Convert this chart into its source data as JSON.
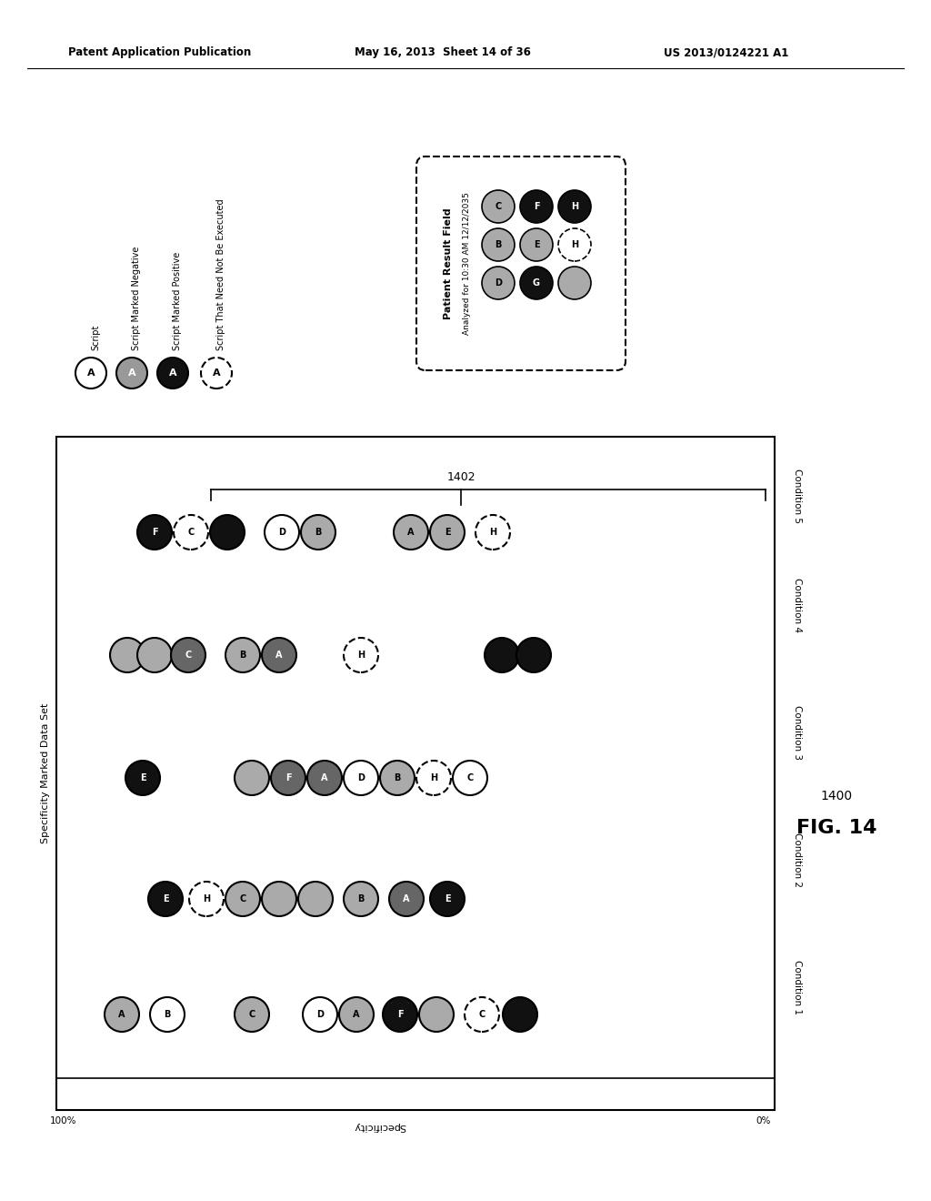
{
  "header_left": "Patent Application Publication",
  "header_mid": "May 16, 2013  Sheet 14 of 36",
  "header_right": "US 2013/0124221 A1",
  "legend_labels": [
    "Script",
    "Script Marked Negative",
    "Script Marked Positive",
    "Script That Need Not Be Executed"
  ],
  "patient_box_title": "Patient Result Field",
  "patient_box_subtitle": "Analyzed for 10:30 AM 12/12/2035",
  "main_box_label": "1402",
  "fig_label": "1400",
  "fig_number": "FIG. 14",
  "ylabel": "Specificity Marked Data Set",
  "xlabel": "Specificity",
  "xleft": "100%",
  "xright": "0%",
  "conditions": [
    "Condition 1",
    "Condition 2",
    "Condition 3",
    "Condition 4",
    "Condition 5"
  ],
  "bg_color": "#ffffff"
}
